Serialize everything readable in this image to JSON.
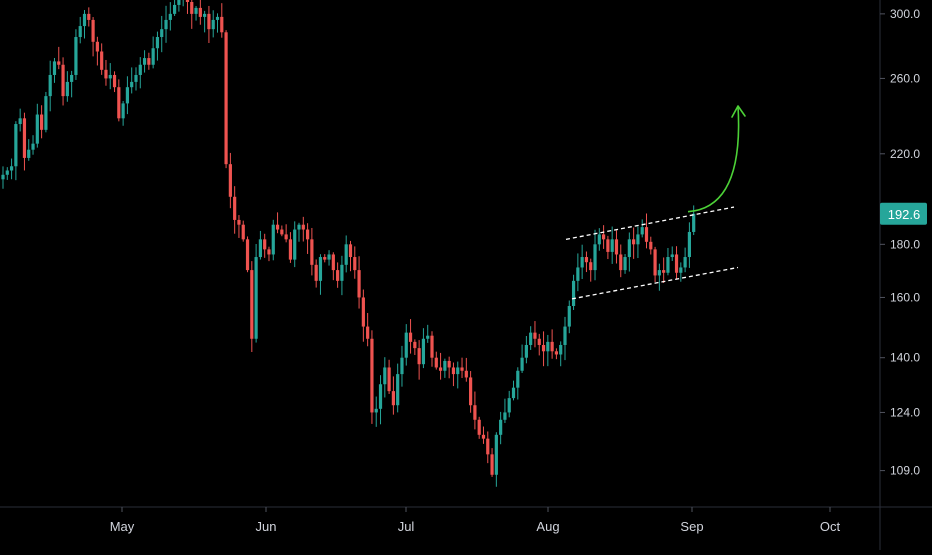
{
  "chart_data": {
    "type": "candlestick",
    "title": "",
    "xlabel": "",
    "ylabel": "",
    "y_scale": "log",
    "ylim": [
      101,
      308
    ],
    "grid": false,
    "legend": "none",
    "y_ticks": [
      "300.0",
      "260.0",
      "220.0",
      "180.0",
      "160.0",
      "140.0",
      "124.0",
      "109.0"
    ],
    "x_ticks": [
      "May",
      "Jun",
      "Jul",
      "Aug",
      "Sep",
      "Oct"
    ],
    "last_price_label": "192.6",
    "colors": {
      "up": "#26a69a",
      "down": "#ef5350",
      "last_price_badge": "#26a69a",
      "channel_lines": "#ffffff",
      "projection_arrow": "#4cd137",
      "background": "#000000",
      "axis_text": "#d1d4dc"
    },
    "series": [
      {
        "values": [
          210,
          212,
          214,
          235,
          238,
          218,
          222,
          225,
          240,
          232,
          250,
          262,
          270,
          268,
          250,
          258,
          262,
          285,
          292,
          300,
          296,
          282,
          276,
          265,
          260,
          262,
          255,
          238,
          246,
          255,
          258,
          262,
          268,
          272,
          268,
          278,
          285,
          290,
          296,
          300,
          306,
          310,
          312,
          308,
          300,
          304,
          298,
          300,
          290,
          296,
          298,
          288,
          215,
          200,
          190,
          188,
          182,
          170,
          146,
          175,
          182,
          178,
          176,
          188,
          186,
          184,
          182,
          174,
          186,
          188,
          186,
          182,
          172,
          166,
          175,
          174,
          176,
          170,
          166,
          172,
          180,
          175,
          170,
          160,
          150,
          146,
          124,
          125,
          132,
          137,
          130,
          126,
          135,
          140,
          148,
          145,
          143,
          138,
          146,
          147,
          140,
          137,
          136,
          139,
          137,
          135,
          137,
          136,
          134,
          126,
          122,
          118,
          117,
          113,
          108,
          118,
          122,
          124,
          128,
          131,
          136,
          140,
          144,
          148,
          146,
          144,
          142,
          145,
          142,
          141,
          144,
          150,
          157,
          166,
          171,
          175,
          173,
          170,
          180,
          184,
          182,
          177,
          182,
          176,
          170,
          175,
          182,
          180,
          184,
          187,
          181,
          178,
          168,
          170,
          169,
          175,
          176,
          169,
          171,
          175,
          185,
          192.6
        ]
      }
    ],
    "annotations": [
      {
        "type": "dashed-line",
        "name": "channel-upper"
      },
      {
        "type": "dashed-line",
        "name": "channel-lower"
      },
      {
        "type": "curved-arrow",
        "name": "breakout-projection"
      }
    ]
  }
}
